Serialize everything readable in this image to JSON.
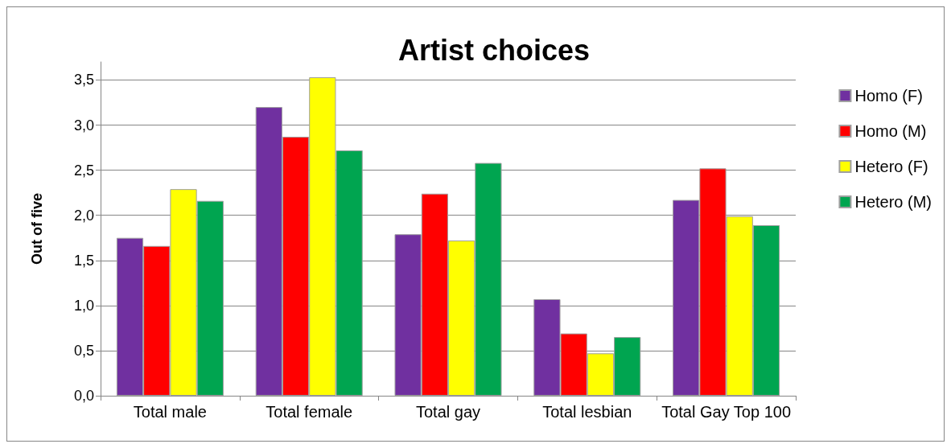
{
  "chart_data": {
    "type": "bar",
    "title": "Artist choices",
    "ylabel": "Out of five",
    "categories": [
      "Total male",
      "Total female",
      "Total gay",
      "Total lesbian",
      "Total Gay Top 100"
    ],
    "series": [
      {
        "name": "Homo (F)",
        "color": "#7030a0",
        "values": [
          1.75,
          3.2,
          1.79,
          1.07,
          2.17
        ]
      },
      {
        "name": "Homo (M)",
        "color": "#ff0000",
        "values": [
          1.66,
          2.87,
          2.24,
          0.69,
          2.52
        ]
      },
      {
        "name": "Hetero (F)",
        "color": "#ffff00",
        "values": [
          2.29,
          3.53,
          1.72,
          0.47,
          1.99
        ]
      },
      {
        "name": "Hetero (M)",
        "color": "#00a550",
        "values": [
          2.16,
          2.72,
          2.58,
          0.65,
          1.89
        ]
      }
    ],
    "ylim": [
      0,
      3.7
    ],
    "yticks": [
      {
        "value": 0,
        "label": "0,0"
      },
      {
        "value": 0.5,
        "label": "0,5"
      },
      {
        "value": 1,
        "label": "1,0"
      },
      {
        "value": 1.5,
        "label": "1,5"
      },
      {
        "value": 2,
        "label": "2,0"
      },
      {
        "value": 2.5,
        "label": "2,5"
      },
      {
        "value": 3,
        "label": "3,0"
      },
      {
        "value": 3.5,
        "label": "3,5"
      }
    ],
    "grid": "y",
    "legend": "right"
  }
}
